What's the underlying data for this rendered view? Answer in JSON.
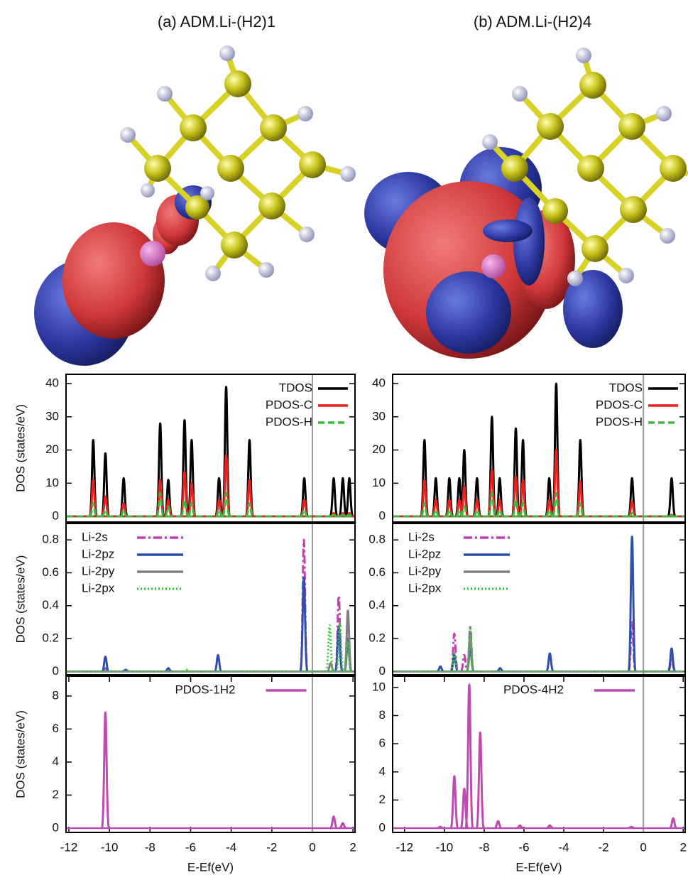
{
  "panel_titles": [
    "(a) ADM.Li-(H2)1",
    "(b) ADM.Li-(H2)4"
  ],
  "chart_data": [
    {
      "type": "spectrum",
      "ylabel": "DOS (states/eV)",
      "xlim": [
        -12.14,
        2.1
      ],
      "ylim": [
        -1.7,
        42.8
      ],
      "yticks": [
        0,
        10,
        20,
        30,
        40
      ],
      "fermi": 0,
      "legend": "upper right",
      "series": [
        {
          "name": "TDOS",
          "color": "#000000",
          "dash": "solid",
          "x": [
            -10.8,
            -10.2,
            -9.3,
            -7.5,
            -7.1,
            -6.3,
            -5.95,
            -4.6,
            -4.25,
            -3.1,
            -0.4,
            1.05,
            1.5,
            1.82
          ],
          "values": [
            23,
            19,
            11.5,
            28,
            11,
            29,
            23,
            11.5,
            39,
            23,
            11.5,
            11.5,
            11.5,
            11.5
          ]
        },
        {
          "name": "PDOS-C",
          "color": "#e8211c",
          "dash": "solid",
          "x": [
            -10.8,
            -10.2,
            -9.3,
            -7.5,
            -7.1,
            -6.3,
            -5.95,
            -4.6,
            -4.25,
            -3.1,
            -0.4,
            1.05,
            1.5,
            1.82
          ],
          "values": [
            11,
            6,
            4,
            11,
            5,
            13.5,
            10,
            5,
            18.5,
            11,
            5,
            1,
            1,
            1
          ]
        },
        {
          "name": "PDOS-H",
          "color": "#3cb83c",
          "dash": "dashed",
          "x": [
            -10.8,
            -10.2,
            -9.3,
            -7.5,
            -7.1,
            -6.3,
            -5.95,
            -4.6,
            -4.25,
            -3.1,
            -0.4,
            1.05,
            1.5,
            1.82
          ],
          "values": [
            4,
            2,
            2,
            7,
            3,
            5,
            4,
            2,
            7,
            4,
            2,
            0.5,
            0.5,
            0.5
          ]
        }
      ]
    },
    {
      "type": "spectrum",
      "ylabel": "DOS (states/eV)",
      "xlim": [
        -12.14,
        2.1
      ],
      "ylim": [
        -0.02,
        0.9
      ],
      "yticks": [
        0,
        0.2,
        0.4,
        0.6,
        0.8
      ],
      "fermi": 0,
      "legend": "upper left",
      "series": [
        {
          "name": "Li-2s",
          "color": "#c23fb4",
          "dash": "dashdot",
          "x": [
            -10.2,
            -0.42,
            1.3
          ],
          "values": [
            0.02,
            0.8,
            0.46
          ]
        },
        {
          "name": "Li-2pz",
          "color": "#2f4fae",
          "dash": "solid",
          "x": [
            -10.2,
            -9.2,
            -7.1,
            -4.65,
            -0.42,
            1.3,
            1.75
          ],
          "values": [
            0.09,
            0.01,
            0.02,
            0.1,
            0.57,
            0.27,
            0.2
          ]
        },
        {
          "name": "Li-2py",
          "color": "#808080",
          "dash": "solid",
          "x": [
            0.9,
            1.75
          ],
          "values": [
            0.05,
            0.37
          ]
        },
        {
          "name": "Li-2px",
          "color": "#3ec43e",
          "dash": "dotted",
          "x": [
            -6.2,
            0.85,
            1.35,
            1.75
          ],
          "values": [
            0.01,
            0.28,
            0.3,
            0.18
          ]
        }
      ]
    },
    {
      "type": "spectrum",
      "ylabel": "DOS (states/eV)",
      "xlabel": "E-Ef(eV)",
      "xlim": [
        -12.14,
        2.1
      ],
      "ylim": [
        -0.26,
        9.2
      ],
      "yticks": [
        0,
        2,
        4,
        6,
        8
      ],
      "xticks": [
        -12,
        -10,
        -8,
        -6,
        -4,
        -2,
        0,
        2
      ],
      "fermi": 0,
      "legend": "upper center",
      "series": [
        {
          "name": "PDOS-1H2",
          "color": "#c04ab4",
          "dash": "solid",
          "x": [
            -10.2,
            1.05,
            1.5
          ],
          "values": [
            7,
            0.7,
            0.3
          ]
        }
      ]
    },
    {
      "type": "spectrum",
      "xlim": [
        -12.6,
        2.1
      ],
      "ylim": [
        -1.7,
        42.8
      ],
      "yticks": [
        0,
        10,
        20,
        30,
        40
      ],
      "fermi": 0,
      "legend": "upper right",
      "series": [
        {
          "name": "TDOS",
          "color": "#000000",
          "dash": "solid",
          "x": [
            -11.0,
            -10.43,
            -9.75,
            -9.25,
            -9.0,
            -8.36,
            -7.61,
            -7.22,
            -6.41,
            -6.05,
            -4.73,
            -4.38,
            -3.17,
            -0.57,
            1.42
          ],
          "values": [
            23,
            11.5,
            11.5,
            11.5,
            20,
            11.5,
            30,
            11.5,
            26.5,
            23,
            11.5,
            40,
            23,
            11.5,
            11.5
          ]
        },
        {
          "name": "PDOS-C",
          "color": "#e8211c",
          "dash": "solid",
          "x": [
            -11.0,
            -10.43,
            -9.75,
            -9.25,
            -9.0,
            -8.36,
            -7.61,
            -7.22,
            -6.41,
            -6.05,
            -4.73,
            -4.38,
            -3.17,
            -0.57,
            1.42
          ],
          "values": [
            11,
            5,
            5,
            5,
            9,
            5,
            14,
            5,
            12,
            11,
            5,
            20,
            10.5,
            4.5,
            0.5
          ]
        },
        {
          "name": "PDOS-H",
          "color": "#3cb83c",
          "dash": "dashed",
          "x": [
            -11.0,
            -10.43,
            -9.75,
            -9.25,
            -9.0,
            -8.36,
            -7.61,
            -7.22,
            -6.41,
            -6.05,
            -4.73,
            -4.38,
            -3.17,
            -0.57,
            1.42
          ],
          "values": [
            4,
            2,
            2,
            2,
            3,
            2,
            7,
            2,
            5,
            4,
            2,
            7,
            4,
            1,
            0.3
          ]
        }
      ]
    },
    {
      "type": "spectrum",
      "xlim": [
        -12.6,
        2.1
      ],
      "ylim": [
        -0.02,
        0.9
      ],
      "yticks": [
        0,
        0.2,
        0.4,
        0.6,
        0.8
      ],
      "fermi": 0,
      "legend": "upper left",
      "series": [
        {
          "name": "Li-2s",
          "color": "#c23fb4",
          "dash": "dashdot",
          "x": [
            -9.5,
            -9.0,
            -8.7,
            -0.57,
            1.42
          ],
          "values": [
            0.23,
            0.1,
            0.27,
            0.3,
            0.08
          ]
        },
        {
          "name": "Li-2pz",
          "color": "#2f4fae",
          "dash": "solid",
          "x": [
            -10.2,
            -9.5,
            -8.7,
            -7.2,
            -4.7,
            -0.57,
            1.42
          ],
          "values": [
            0.03,
            0.1,
            0.15,
            0.02,
            0.11,
            0.82,
            0.14
          ]
        },
        {
          "name": "Li-2py",
          "color": "#808080",
          "dash": "solid",
          "x": [
            -8.7
          ],
          "values": [
            0.22
          ]
        },
        {
          "name": "Li-2px",
          "color": "#3ec43e",
          "dash": "dotted",
          "x": [
            -9.5,
            -8.7
          ],
          "values": [
            0.12,
            0.27
          ]
        }
      ]
    },
    {
      "type": "spectrum",
      "xlabel": "E-Ef(eV)",
      "xlim": [
        -12.6,
        2.1
      ],
      "ylim": [
        -0.3,
        10.8
      ],
      "yticks": [
        0,
        2,
        4,
        6,
        8,
        10
      ],
      "xticks": [
        -12,
        -10,
        -8,
        -6,
        -4,
        -2,
        0,
        2
      ],
      "fermi": 0,
      "legend": "upper center",
      "series": [
        {
          "name": "PDOS-4H2",
          "color": "#c04ab4",
          "dash": "solid",
          "x": [
            -10.2,
            -9.5,
            -9.0,
            -8.75,
            -8.2,
            -7.3,
            -6.2,
            -4.7,
            -0.6,
            1.5
          ],
          "values": [
            0.1,
            3.7,
            2.8,
            10.2,
            6.8,
            0.5,
            0.2,
            0.2,
            0.1,
            0.7
          ]
        }
      ]
    }
  ]
}
